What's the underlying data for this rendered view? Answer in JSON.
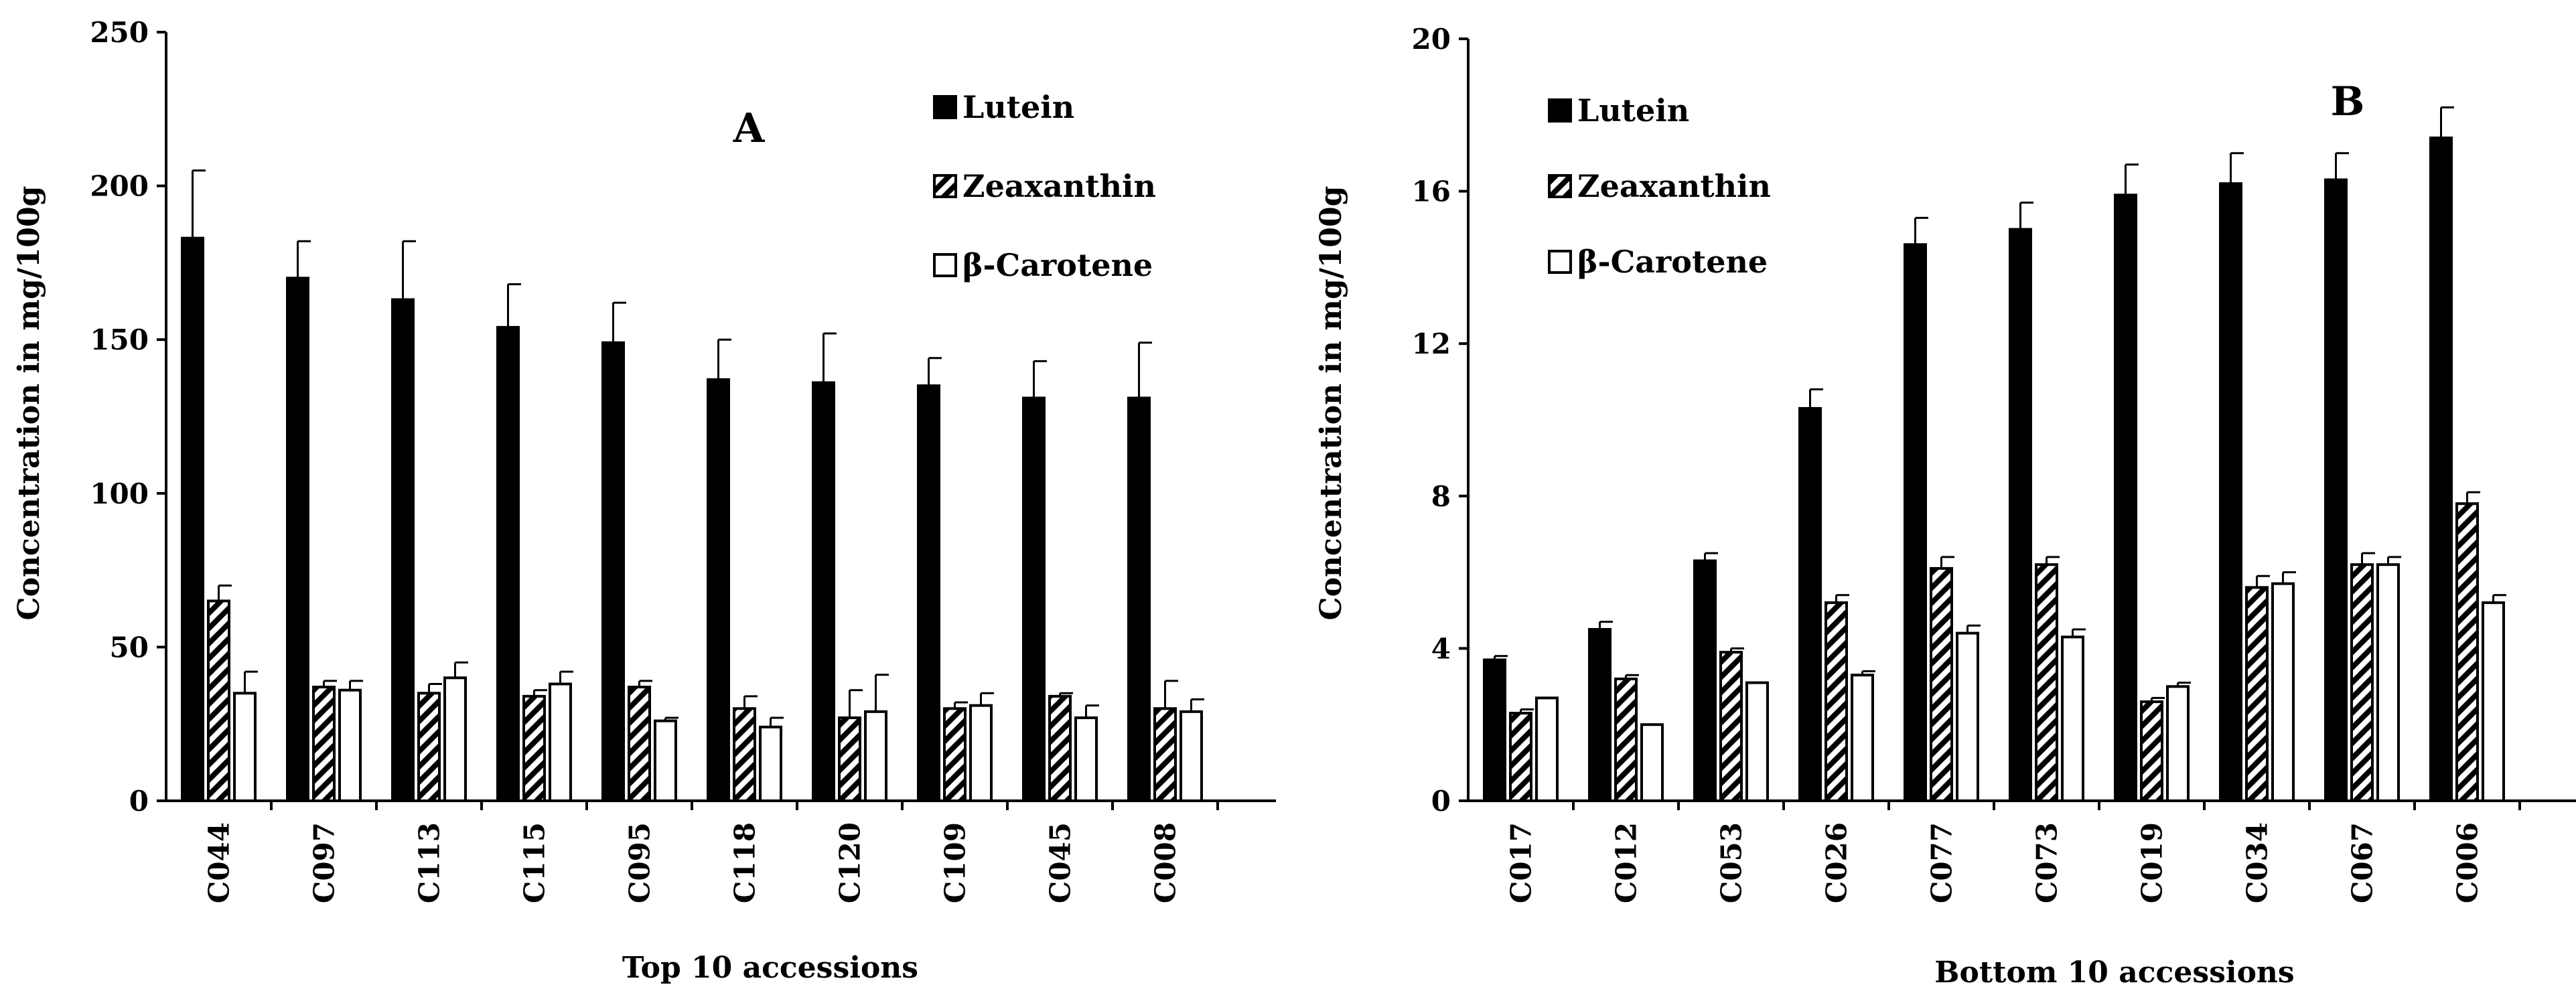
{
  "chart_data": [
    {
      "type": "bar",
      "panel_label": "A",
      "title": "",
      "xlabel": "Top 10 accessions",
      "ylabel": "Concentration in mg/100g",
      "ylim": [
        0,
        250
      ],
      "yticks": [
        "0",
        "50",
        "100",
        "150",
        "200",
        "250"
      ],
      "categories": [
        "C044",
        "C097",
        "C113",
        "C115",
        "C095",
        "C118",
        "C120",
        "C109",
        "C045",
        "C008"
      ],
      "series": [
        {
          "name": "Lutein",
          "pattern": "solid",
          "values": [
            183,
            170,
            163,
            154,
            149,
            137,
            136,
            135,
            131,
            131
          ],
          "errors": [
            22,
            12,
            19,
            14,
            13,
            13,
            16,
            9,
            12,
            18
          ]
        },
        {
          "name": "Zeaxanthin",
          "pattern": "hatch",
          "values": [
            65,
            37,
            35,
            34,
            37,
            30,
            27,
            30,
            34,
            30
          ],
          "errors": [
            5,
            2,
            3,
            2,
            2,
            4,
            9,
            2,
            1,
            9
          ]
        },
        {
          "name": "β-Carotene",
          "pattern": "open",
          "values": [
            35,
            36,
            40,
            38,
            26,
            24,
            29,
            31,
            27,
            29
          ],
          "errors": [
            7,
            3,
            5,
            4,
            1,
            3,
            12,
            4,
            4,
            4
          ]
        }
      ],
      "legend": {
        "position": "top-right",
        "labels": [
          "Lutein",
          "Zeaxanthin",
          "β-Carotene"
        ]
      }
    },
    {
      "type": "bar",
      "panel_label": "B",
      "title": "",
      "xlabel": "Bottom 10 accessions",
      "ylabel": "Concentration in mg/100g",
      "ylim": [
        0,
        20
      ],
      "yticks": [
        "0",
        "4",
        "8",
        "12",
        "16",
        "20"
      ],
      "categories": [
        "C017",
        "C012",
        "C053",
        "C026",
        "C077",
        "C073",
        "C019",
        "C034",
        "C067",
        "C006"
      ],
      "series": [
        {
          "name": "Lutein",
          "pattern": "solid",
          "values": [
            3.7,
            4.5,
            6.3,
            10.3,
            14.6,
            15.0,
            15.9,
            16.2,
            16.3,
            17.4
          ],
          "errors": [
            0.1,
            0.2,
            0.2,
            0.5,
            0.7,
            0.7,
            0.8,
            0.8,
            0.7,
            0.8
          ]
        },
        {
          "name": "Zeaxanthin",
          "pattern": "hatch",
          "values": [
            2.3,
            3.2,
            3.9,
            5.2,
            6.1,
            6.2,
            2.6,
            5.6,
            6.2,
            7.8
          ],
          "errors": [
            0.1,
            0.1,
            0.1,
            0.2,
            0.3,
            0.2,
            0.1,
            0.3,
            0.3,
            0.3
          ]
        },
        {
          "name": "β-Carotene",
          "pattern": "open",
          "values": [
            2.7,
            2.0,
            3.1,
            3.3,
            4.4,
            4.3,
            3.0,
            5.7,
            6.2,
            5.2
          ],
          "errors": [
            0.0,
            0.0,
            0.0,
            0.1,
            0.2,
            0.2,
            0.1,
            0.3,
            0.2,
            0.2
          ]
        }
      ],
      "legend": {
        "position": "top-right",
        "labels": [
          "Lutein",
          "Zeaxanthin",
          "β-Carotene"
        ]
      }
    }
  ]
}
